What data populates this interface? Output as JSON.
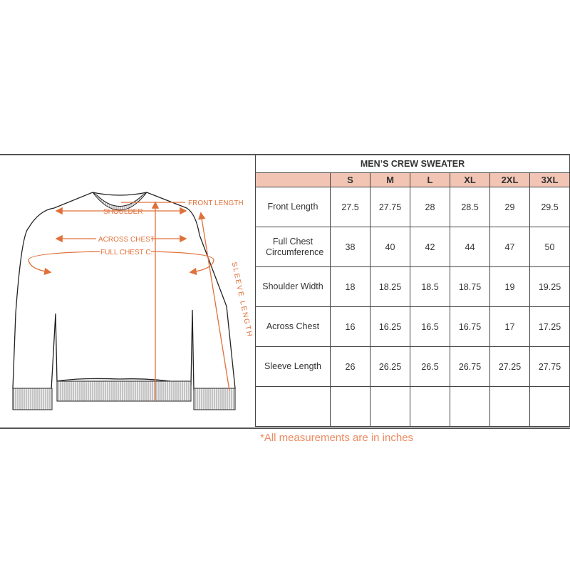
{
  "diagram": {
    "labels": {
      "front_length": "FRONT LENGTH",
      "shoulder": "SHOULDER",
      "across_chest": "ACROSS CHEST",
      "full_chest": "FULL CHEST C.",
      "sleeve_length": "SLEEVE LENGTH"
    },
    "accent_color": "#e0703a"
  },
  "table": {
    "title": "MEN’S CREW SWEATER",
    "sizes": [
      "S",
      "M",
      "L",
      "XL",
      "2XL",
      "3XL"
    ],
    "header_color": "#f2c4b4",
    "rows": [
      {
        "label": "Front Length",
        "values": [
          "27.5",
          "27.75",
          "28",
          "28.5",
          "29",
          "29.5"
        ]
      },
      {
        "label": "Full Chest Circumference",
        "values": [
          "38",
          "40",
          "42",
          "44",
          "47",
          "50"
        ]
      },
      {
        "label": "Shoulder Width",
        "values": [
          "18",
          "18.25",
          "18.5",
          "18.75",
          "19",
          "19.25"
        ]
      },
      {
        "label": "Across Chest",
        "values": [
          "16",
          "16.25",
          "16.5",
          "16.75",
          "17",
          "17.25"
        ]
      },
      {
        "label": "Sleeve Length",
        "values": [
          "26",
          "26.25",
          "26.5",
          "26.75",
          "27.25",
          "27.75"
        ]
      }
    ]
  },
  "note": "*All measurements are in inches"
}
